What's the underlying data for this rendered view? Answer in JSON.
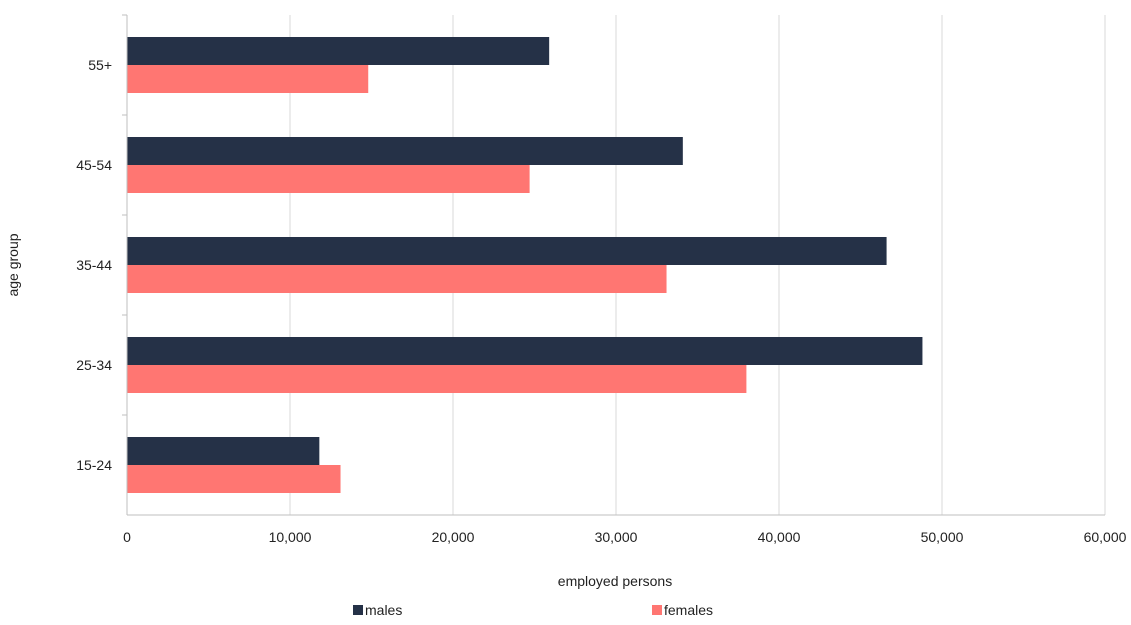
{
  "chart_data": {
    "type": "bar",
    "orientation": "horizontal",
    "categories": [
      "15-24",
      "25-34",
      "35-44",
      "45-54",
      "55+"
    ],
    "series": [
      {
        "name": "males",
        "color": "#253147",
        "values": [
          11800,
          48800,
          46600,
          34100,
          25900
        ]
      },
      {
        "name": "females",
        "color": "#ff7672",
        "values": [
          13100,
          38000,
          33100,
          24700,
          14800
        ]
      }
    ],
    "xlabel": "employed persons",
    "ylabel": "age group",
    "xlim": [
      0,
      60000
    ],
    "x_ticks": [
      0,
      10000,
      20000,
      30000,
      40000,
      50000,
      60000
    ],
    "x_tick_labels": [
      "0",
      "10,000",
      "20,000",
      "30,000",
      "40,000",
      "50,000",
      "60,000"
    ],
    "grid": "vertical",
    "legend_position": "bottom"
  }
}
